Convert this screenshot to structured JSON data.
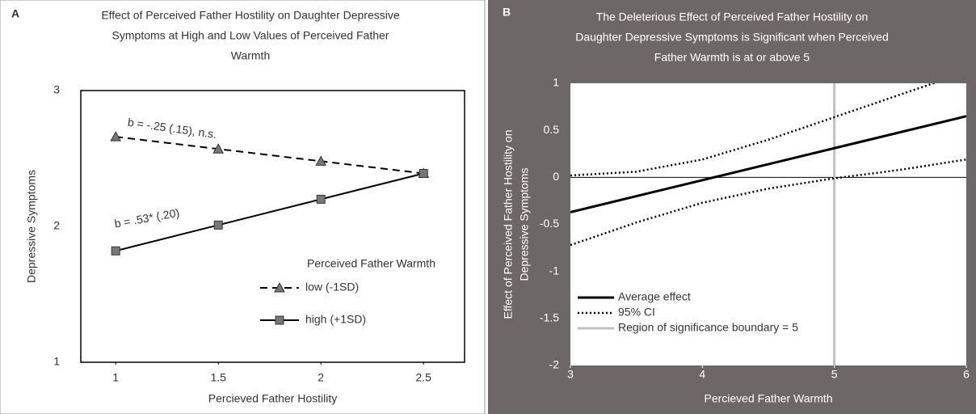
{
  "chart_data": [
    {
      "type": "line",
      "panel": "A",
      "title": [
        "Effect of Perceived Father Hostility on Daughter Depressive",
        "Symptoms at High and Low Values of Perceived Father",
        "Warmth"
      ],
      "xlabel": "Percieved Father Hostility",
      "ylabel": "Depressive Symptoms",
      "x": [
        1,
        1.5,
        2,
        2.5
      ],
      "xlim": [
        0.83,
        2.7
      ],
      "xticks": [
        1,
        1.5,
        2,
        2.5
      ],
      "ylim": [
        1,
        3
      ],
      "yticks": [
        1,
        2,
        3
      ],
      "legend_title": "Perceived Father Warmth",
      "series": [
        {
          "name": "low (-1SD)",
          "color": "#000000",
          "marker": "triangle",
          "dash": true,
          "values": [
            2.66,
            2.57,
            2.48,
            2.39
          ]
        },
        {
          "name": "high (+1SD)",
          "color": "#000000",
          "marker": "square",
          "dash": false,
          "values": [
            1.82,
            2.01,
            2.2,
            2.39
          ]
        }
      ],
      "annotations": [
        "b = -.25 (.15), n.s.",
        "b = .53* (.20)"
      ]
    },
    {
      "type": "line",
      "panel": "B",
      "title": [
        "The Deleterious Effect of Perceived Father Hostility on",
        "Daughter Depressive Symptoms is Significant when Perceived",
        "Father Warmth is at or above 5"
      ],
      "xlabel": "Percieved Father Warmth",
      "ylabel": [
        "Effect of Perceived Father Hostility on",
        "Depressive Symptoms"
      ],
      "x": [
        3,
        3.5,
        4,
        4.5,
        5,
        5.5,
        6
      ],
      "xlim": [
        3,
        6
      ],
      "xticks": [
        3,
        4,
        5,
        6
      ],
      "ylim": [
        -2,
        1
      ],
      "yticks": [
        1,
        0.5,
        0,
        -0.5,
        -1,
        -1.5,
        -2
      ],
      "series": [
        {
          "name": "Average effect",
          "color": "#000000",
          "values": [
            -0.37,
            -0.2,
            -0.03,
            0.14,
            0.31,
            0.48,
            0.65
          ]
        },
        {
          "name": "95% CI",
          "color": "#000000",
          "upper": [
            0.02,
            0.06,
            0.19,
            0.4,
            0.64,
            0.88,
            1.12
          ],
          "lower": [
            -0.72,
            -0.48,
            -0.27,
            -0.12,
            -0.01,
            0.08,
            0.19
          ]
        }
      ],
      "vline": {
        "name": "Region of significance boundary = 5",
        "x": 5,
        "color": "#c0c0c0"
      }
    }
  ]
}
